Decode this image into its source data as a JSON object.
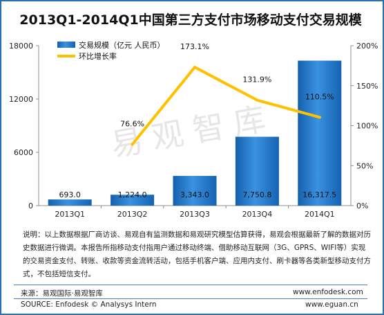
{
  "chart_data": {
    "type": "bar+line",
    "title": "2013Q1-2014Q1中国第三方支付市场移动支付交易规模",
    "categories": [
      "2013Q1",
      "2013Q2",
      "2013Q3",
      "2013Q4",
      "2014Q1"
    ],
    "series": [
      {
        "name": "交易规模（亿元 人民币）",
        "type": "bar",
        "axis": "left",
        "values": [
          693.0,
          1224.0,
          3343.0,
          7750.8,
          16317.5
        ],
        "labels": [
          "693.0",
          "1,224.0",
          "3,343.0",
          "7,750.8",
          "16,317.5"
        ],
        "color": "#1f76c8"
      },
      {
        "name": "环比增长率",
        "type": "line",
        "axis": "right",
        "values": [
          null,
          76.6,
          173.1,
          131.9,
          110.5
        ],
        "labels": [
          "",
          "76.6%",
          "173.1%",
          "131.9%",
          "110.5%"
        ],
        "color": "#ffc000"
      }
    ],
    "y_left": {
      "min": 0,
      "max": 18000,
      "ticks": [
        0,
        6000,
        12000,
        18000
      ],
      "tick_labels": [
        "0",
        "6000",
        "12000",
        "18000"
      ]
    },
    "y_right": {
      "min": 0,
      "max": 200,
      "ticks": [
        0,
        50,
        100,
        150,
        200
      ],
      "tick_labels": [
        "0%",
        "50%",
        "100%",
        "150%",
        "200%"
      ]
    },
    "legend_position": "top-left",
    "grid": false,
    "watermark": "易观智库"
  },
  "note": "说明：以上数据根据厂商访谈、易观自有监测数据和易观研究模型估算获得，易观会根据最新了解的数据对历史数据进行微调。本报告所指移动支付指用户通过移动终端、借助移动互联网（3G、GPRS、WIFI等）实现的交易资金支付、转账、收款等资金流转活动，包括手机客户端、应用内支付、刷卡器等各类新型移动支付方式，不包括短信支付。",
  "footer": {
    "source_cn": "来源：易观国际·易观智库",
    "source_en": "SOURCE: Enfodesk © Analysys Intern",
    "site1": "www.enfodesk.com",
    "site2": "www.eguan.cn"
  }
}
